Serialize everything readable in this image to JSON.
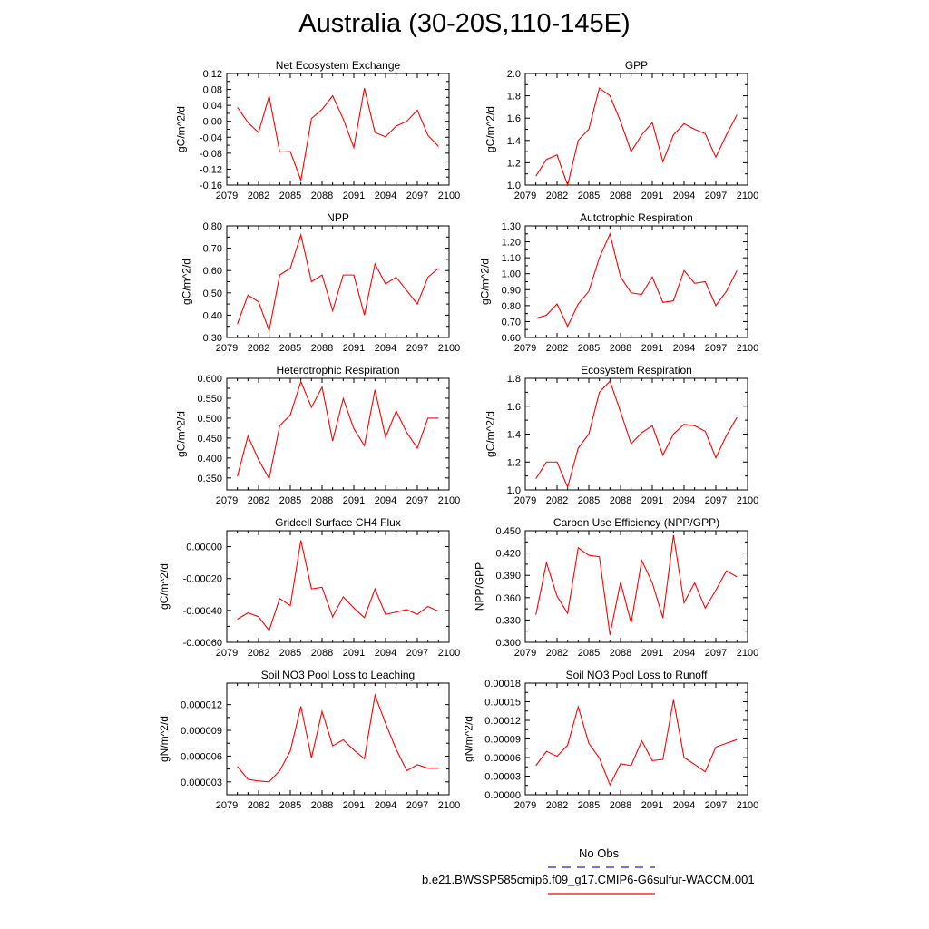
{
  "title": "Australia (30-20S,110-145E)",
  "colors": {
    "model": "#ff0000",
    "obs": "#2222cc",
    "axis": "#000000"
  },
  "legend": {
    "obs_label": "No Obs",
    "model_label": "b.e21.BWSSP585cmip6.f09_g17.CMIP6-G6sulfur-WACCM.001"
  },
  "chart_data": [
    {
      "type": "line",
      "title": "Net Ecosystem Exchange",
      "ylabel": "gC/m^2/d",
      "xlim": [
        2079,
        2100
      ],
      "xticks": [
        2079,
        2082,
        2085,
        2088,
        2091,
        2094,
        2097,
        2100
      ],
      "ylim": [
        -0.16,
        0.12
      ],
      "yticks": [
        "-0.16",
        "-0.12",
        "-0.08",
        "-0.04",
        "0.00",
        "0.04",
        "0.08",
        "0.12"
      ],
      "x": [
        2080,
        2081,
        2082,
        2083,
        2084,
        2085,
        2086,
        2087,
        2088,
        2089,
        2090,
        2091,
        2092,
        2093,
        2094,
        2095,
        2096,
        2097,
        2098,
        2099
      ],
      "series": [
        {
          "values": [
            0.035,
            -0.003,
            -0.028,
            0.063,
            -0.077,
            -0.076,
            -0.148,
            0.007,
            0.03,
            0.064,
            0.006,
            -0.066,
            0.083,
            -0.028,
            -0.039,
            -0.012,
            0.0,
            0.028,
            -0.035,
            -0.063
          ]
        }
      ]
    },
    {
      "type": "line",
      "title": "GPP",
      "ylabel": "gC/m^2/d",
      "xlim": [
        2079,
        2100
      ],
      "xticks": [
        2079,
        2082,
        2085,
        2088,
        2091,
        2094,
        2097,
        2100
      ],
      "ylim": [
        1.0,
        2.0
      ],
      "yticks": [
        "1.0",
        "1.2",
        "1.4",
        "1.6",
        "1.8",
        "2.0"
      ],
      "x": [
        2080,
        2081,
        2082,
        2083,
        2084,
        2085,
        2086,
        2087,
        2088,
        2089,
        2090,
        2091,
        2092,
        2093,
        2094,
        2095,
        2096,
        2097,
        2098,
        2099
      ],
      "series": [
        {
          "values": [
            1.08,
            1.23,
            1.27,
            1.0,
            1.4,
            1.5,
            1.87,
            1.8,
            1.57,
            1.3,
            1.45,
            1.56,
            1.21,
            1.45,
            1.55,
            1.5,
            1.46,
            1.25,
            1.45,
            1.63
          ]
        }
      ]
    },
    {
      "type": "line",
      "title": "NPP",
      "ylabel": "gC/m^2/d",
      "xlim": [
        2079,
        2100
      ],
      "xticks": [
        2079,
        2082,
        2085,
        2088,
        2091,
        2094,
        2097,
        2100
      ],
      "ylim": [
        0.3,
        0.8
      ],
      "yticks": [
        "0.30",
        "0.40",
        "0.50",
        "0.60",
        "0.70",
        "0.80"
      ],
      "x": [
        2080,
        2081,
        2082,
        2083,
        2084,
        2085,
        2086,
        2087,
        2088,
        2089,
        2090,
        2091,
        2092,
        2093,
        2094,
        2095,
        2096,
        2097,
        2098,
        2099
      ],
      "series": [
        {
          "values": [
            0.36,
            0.49,
            0.46,
            0.33,
            0.58,
            0.61,
            0.76,
            0.55,
            0.58,
            0.42,
            0.58,
            0.58,
            0.4,
            0.63,
            0.54,
            0.57,
            0.51,
            0.45,
            0.57,
            0.61
          ]
        }
      ]
    },
    {
      "type": "line",
      "title": "Autotrophic Respiration",
      "ylabel": "gC/m^2/d",
      "xlim": [
        2079,
        2100
      ],
      "xticks": [
        2079,
        2082,
        2085,
        2088,
        2091,
        2094,
        2097,
        2100
      ],
      "ylim": [
        0.6,
        1.3
      ],
      "yticks": [
        "0.60",
        "0.70",
        "0.80",
        "0.90",
        "1.00",
        "1.10",
        "1.20",
        "1.30"
      ],
      "x": [
        2080,
        2081,
        2082,
        2083,
        2084,
        2085,
        2086,
        2087,
        2088,
        2089,
        2090,
        2091,
        2092,
        2093,
        2094,
        2095,
        2096,
        2097,
        2098,
        2099
      ],
      "series": [
        {
          "values": [
            0.72,
            0.74,
            0.81,
            0.67,
            0.81,
            0.89,
            1.1,
            1.25,
            0.98,
            0.88,
            0.87,
            0.98,
            0.82,
            0.83,
            1.02,
            0.94,
            0.95,
            0.8,
            0.89,
            1.02
          ]
        }
      ]
    },
    {
      "type": "line",
      "title": "Heterotrophic Respiration",
      "ylabel": "gC/m^2/d",
      "xlim": [
        2079,
        2100
      ],
      "xticks": [
        2079,
        2082,
        2085,
        2088,
        2091,
        2094,
        2097,
        2100
      ],
      "ylim": [
        0.32,
        0.6
      ],
      "yticks": [
        "0.350",
        "0.400",
        "0.450",
        "0.500",
        "0.550",
        "0.600"
      ],
      "x": [
        2080,
        2081,
        2082,
        2083,
        2084,
        2085,
        2086,
        2087,
        2088,
        2089,
        2090,
        2091,
        2092,
        2093,
        2094,
        2095,
        2096,
        2097,
        2098,
        2099
      ],
      "series": [
        {
          "values": [
            0.354,
            0.455,
            0.396,
            0.348,
            0.481,
            0.508,
            0.592,
            0.527,
            0.578,
            0.443,
            0.549,
            0.474,
            0.431,
            0.571,
            0.452,
            0.518,
            0.464,
            0.425,
            0.5,
            0.5
          ]
        }
      ]
    },
    {
      "type": "line",
      "title": "Ecosystem Respiration",
      "ylabel": "gC/m^2/d",
      "xlim": [
        2079,
        2100
      ],
      "xticks": [
        2079,
        2082,
        2085,
        2088,
        2091,
        2094,
        2097,
        2100
      ],
      "ylim": [
        1.0,
        1.8
      ],
      "yticks": [
        "1.0",
        "1.2",
        "1.4",
        "1.6",
        "1.8"
      ],
      "x": [
        2080,
        2081,
        2082,
        2083,
        2084,
        2085,
        2086,
        2087,
        2088,
        2089,
        2090,
        2091,
        2092,
        2093,
        2094,
        2095,
        2096,
        2097,
        2098,
        2099
      ],
      "series": [
        {
          "values": [
            1.08,
            1.2,
            1.2,
            1.02,
            1.3,
            1.4,
            1.7,
            1.78,
            1.56,
            1.33,
            1.41,
            1.46,
            1.25,
            1.4,
            1.47,
            1.46,
            1.42,
            1.23,
            1.39,
            1.52
          ]
        }
      ]
    },
    {
      "type": "line",
      "title": "Gridcell Surface CH4 Flux",
      "ylabel": "gC/m^2/d",
      "xlim": [
        2079,
        2100
      ],
      "xticks": [
        2079,
        2082,
        2085,
        2088,
        2091,
        2094,
        2097,
        2100
      ],
      "ylim": [
        -0.0006,
        0.0001
      ],
      "yticks": [
        "-0.00060",
        "-0.00040",
        "-0.00020",
        "0.00000"
      ],
      "x": [
        2080,
        2081,
        2082,
        2083,
        2084,
        2085,
        2086,
        2087,
        2088,
        2089,
        2090,
        2091,
        2092,
        2093,
        2094,
        2095,
        2096,
        2097,
        2098,
        2099
      ],
      "series": [
        {
          "values": [
            -0.000455,
            -0.000415,
            -0.00044,
            -0.000525,
            -0.000325,
            -0.00037,
            4e-05,
            -0.000265,
            -0.000255,
            -0.00044,
            -0.000315,
            -0.000385,
            -0.000445,
            -0.000265,
            -0.000425,
            -0.00041,
            -0.000395,
            -0.000425,
            -0.000375,
            -0.000405
          ]
        }
      ]
    },
    {
      "type": "line",
      "title": "Carbon Use Efficiency (NPP/GPP)",
      "ylabel": "NPP/GPP",
      "xlim": [
        2079,
        2100
      ],
      "xticks": [
        2079,
        2082,
        2085,
        2088,
        2091,
        2094,
        2097,
        2100
      ],
      "ylim": [
        0.3,
        0.45
      ],
      "yticks": [
        "0.300",
        "0.330",
        "0.360",
        "0.390",
        "0.420",
        "0.450"
      ],
      "x": [
        2080,
        2081,
        2082,
        2083,
        2084,
        2085,
        2086,
        2087,
        2088,
        2089,
        2090,
        2091,
        2092,
        2093,
        2094,
        2095,
        2096,
        2097,
        2098,
        2099
      ],
      "series": [
        {
          "values": [
            0.337,
            0.407,
            0.362,
            0.339,
            0.427,
            0.417,
            0.415,
            0.31,
            0.381,
            0.326,
            0.41,
            0.38,
            0.333,
            0.444,
            0.353,
            0.38,
            0.346,
            0.37,
            0.396,
            0.388
          ]
        }
      ]
    },
    {
      "type": "line",
      "title": "Soil NO3 Pool Loss to Leaching",
      "ylabel": "gN/m^2/d",
      "xlim": [
        2079,
        2100
      ],
      "xticks": [
        2079,
        2082,
        2085,
        2088,
        2091,
        2094,
        2097,
        2100
      ],
      "ylim": [
        1.5e-06,
        1.45e-05
      ],
      "yticks": [
        "0.000003",
        "0.000006",
        "0.000009",
        "0.000012"
      ],
      "x": [
        2080,
        2081,
        2082,
        2083,
        2084,
        2085,
        2086,
        2087,
        2088,
        2089,
        2090,
        2091,
        2092,
        2093,
        2094,
        2095,
        2096,
        2097,
        2098,
        2099
      ],
      "series": [
        {
          "values": [
            4.8e-06,
            3.3e-06,
            3.1e-06,
            3e-06,
            4.3e-06,
            6.6e-06,
            1.18e-05,
            5.8e-06,
            1.12e-05,
            7.2e-06,
            7.9e-06,
            6.7e-06,
            5.7e-06,
            1.31e-05,
            9.8e-06,
            6.8e-06,
            4.3e-06,
            5e-06,
            4.6e-06,
            4.6e-06
          ]
        }
      ]
    },
    {
      "type": "line",
      "title": "Soil NO3 Pool Loss to Runoff",
      "ylabel": "gN/m^2/d",
      "xlim": [
        2079,
        2100
      ],
      "xticks": [
        2079,
        2082,
        2085,
        2088,
        2091,
        2094,
        2097,
        2100
      ],
      "ylim": [
        0.0,
        0.00018
      ],
      "yticks": [
        "0.00000",
        "0.00003",
        "0.00006",
        "0.00009",
        "0.00012",
        "0.00015",
        "0.00018"
      ],
      "x": [
        2080,
        2081,
        2082,
        2083,
        2084,
        2085,
        2086,
        2087,
        2088,
        2089,
        2090,
        2091,
        2092,
        2093,
        2094,
        2095,
        2096,
        2097,
        2098,
        2099
      ],
      "series": [
        {
          "values": [
            4.7e-05,
            7e-05,
            6.2e-05,
            8e-05,
            0.000142,
            8.3e-05,
            5.9e-05,
            1.6e-05,
            5e-05,
            4.7e-05,
            8.7e-05,
            5.5e-05,
            5.7e-05,
            0.000153,
            6e-05,
            4.9e-05,
            3.7e-05,
            7.7e-05,
            8.3e-05,
            8.9e-05
          ]
        }
      ]
    }
  ]
}
